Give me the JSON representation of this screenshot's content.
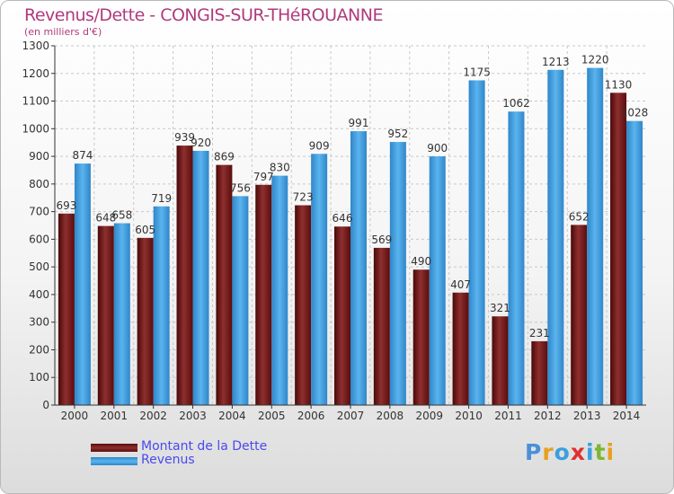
{
  "chart_data": {
    "type": "bar",
    "title": "Revenus/Dette - CONGIS-SUR-THéROUANNE",
    "subtitle": "(en milliers d'€)",
    "categories": [
      "2000",
      "2001",
      "2002",
      "2003",
      "2004",
      "2005",
      "2006",
      "2007",
      "2008",
      "2009",
      "2010",
      "2011",
      "2012",
      "2013",
      "2014"
    ],
    "series": [
      {
        "name": "Montant de la Dette",
        "color": "#7a1f1f",
        "values": [
          693,
          648,
          605,
          939,
          869,
          797,
          723,
          646,
          569,
          490,
          407,
          321,
          231,
          652,
          1130
        ]
      },
      {
        "name": "Revenus",
        "color": "#4aa3e2",
        "values": [
          874,
          658,
          719,
          920,
          756,
          830,
          909,
          991,
          952,
          900,
          1175,
          1062,
          1213,
          1220,
          1028
        ]
      }
    ],
    "ylim": [
      0,
      1300
    ],
    "yticks": [
      0,
      100,
      200,
      300,
      400,
      500,
      600,
      700,
      800,
      900,
      1000,
      1100,
      1200,
      1300
    ],
    "grid": true,
    "legend": "bottom-left"
  },
  "legend": {
    "items": [
      {
        "label": "Montant de la Dette",
        "color": "#7a1f1f"
      },
      {
        "label": "Revenus",
        "color": "#4aa3e2"
      }
    ]
  },
  "brand": {
    "letters": [
      {
        "ch": "P",
        "color": "#4a90d9"
      },
      {
        "ch": "r",
        "color": "#e8a020"
      },
      {
        "ch": "o",
        "color": "#3aa0e0"
      },
      {
        "ch": "x",
        "color": "#e03030"
      },
      {
        "ch": "i",
        "color": "#3aa0e0"
      },
      {
        "ch": "t",
        "color": "#7ab830"
      },
      {
        "ch": "i",
        "color": "#e8a020"
      }
    ]
  }
}
